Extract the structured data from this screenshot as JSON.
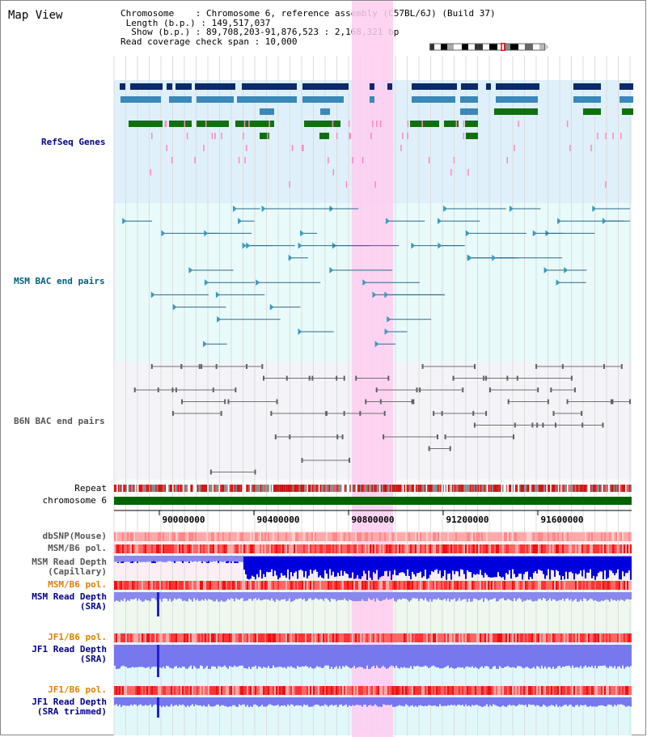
{
  "title": "Map View",
  "info": {
    "chromosome_line": "Chromosome    : Chromosome 6, reference assembly (C57BL/6J) (Build 37)",
    "length_line": " Length (b.p.) : 149,517,037",
    "show_line": "  Show (b.p.) : 89,708,203-91,876,523 : 2,168,321 bp",
    "coverage_line": "Read coverage check span : 10,000"
  },
  "tracks": {
    "refseq": "RefSeq Genes",
    "msm_bac": "MSM BAC end pairs",
    "b6n_bac": "B6N BAC end pairs",
    "repeat": "Repeat",
    "chromosome": "chromosome 6",
    "dbsnp": "dbSNP(Mouse)",
    "msm_b6_pol": "MSM/B6 pol.",
    "msm_depth_cap": "MSM Read Depth\n(Capillary)",
    "msm_b6_pol2": "MSM/B6 pol.",
    "msm_depth_sra": "MSM Read Depth\n(SRA)",
    "jf1_b6_pol": "JF1/B6 pol.",
    "jf1_depth_sra": "JF1 Read Depth\n(SRA)",
    "jf1_b6_pol2": "JF1/B6 pol.",
    "jf1_depth_trim": "JF1 Read Depth\n(SRA trimmed)"
  },
  "axis": {
    "ticks": [
      "90000000",
      "90400000",
      "90800000",
      "91200000",
      "91600000"
    ]
  },
  "colors": {
    "refseq_label": "#00008b",
    "msm_label": "#006080",
    "b6n_label": "#555555",
    "orange_label": "#e08000",
    "blue_label": "#00008b",
    "highlight": "#ffccf0"
  }
}
